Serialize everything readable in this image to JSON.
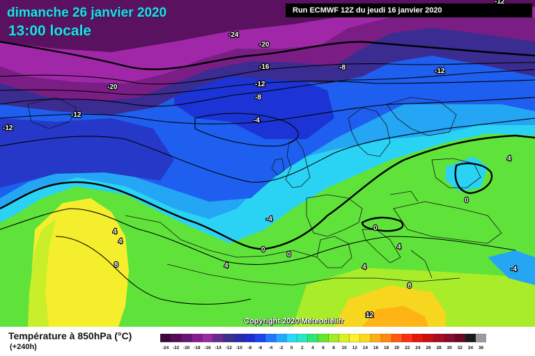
{
  "header": {
    "date": "dimanche 26 janvier 2020",
    "time": "13:00 locale",
    "run": "Run ECMWF 12Z du jeudi 16 janvier 2020"
  },
  "copyright": "Copyright 2020 Meteociel.fr",
  "legend": {
    "title": "Température à 850hPa (°C)",
    "lead": "(+240h)",
    "stops": [
      {
        "value": "-24",
        "color": "#3a0a3a"
      },
      {
        "value": "-22",
        "color": "#550d55"
      },
      {
        "value": "-20",
        "color": "#6a1575"
      },
      {
        "value": "-18",
        "color": "#861d8e"
      },
      {
        "value": "-16",
        "color": "#9a2aa6"
      },
      {
        "value": "-14",
        "color": "#6a2a8a"
      },
      {
        "value": "-12",
        "color": "#3e2f8f"
      },
      {
        "value": "-10",
        "color": "#2a2aa8"
      },
      {
        "value": "-8",
        "color": "#1c2ed0"
      },
      {
        "value": "-6",
        "color": "#1a45f0"
      },
      {
        "value": "-4",
        "color": "#1f78ff"
      },
      {
        "value": "-2",
        "color": "#23a8ff"
      },
      {
        "value": "0",
        "color": "#2bd8ff"
      },
      {
        "value": "2",
        "color": "#27e7c4"
      },
      {
        "value": "4",
        "color": "#2fe874"
      },
      {
        "value": "6",
        "color": "#62e82c"
      },
      {
        "value": "8",
        "color": "#a2ec26"
      },
      {
        "value": "10",
        "color": "#d9f021"
      },
      {
        "value": "12",
        "color": "#fff22a"
      },
      {
        "value": "14",
        "color": "#ffd81a"
      },
      {
        "value": "16",
        "color": "#ffae14"
      },
      {
        "value": "18",
        "color": "#ff8a12"
      },
      {
        "value": "20",
        "color": "#ff5a10"
      },
      {
        "value": "22",
        "color": "#ff2e10"
      },
      {
        "value": "24",
        "color": "#e8140e"
      },
      {
        "value": "26",
        "color": "#c80f0e"
      },
      {
        "value": "28",
        "color": "#a80c1e"
      },
      {
        "value": "30",
        "color": "#8a0a2a"
      },
      {
        "value": "32",
        "color": "#6a0822"
      },
      {
        "value": "34",
        "color": "#1a1a1a"
      },
      {
        "value": "36",
        "color": "#9a9aa4"
      }
    ]
  },
  "contour_labels": [
    "-24",
    "-20",
    "-16",
    "-12",
    "-8",
    "-20",
    "-12",
    "-12",
    "-12",
    "-8",
    "-4",
    "-12",
    "-4",
    "0",
    "0",
    "0",
    "0",
    "4",
    "4",
    "4",
    "8",
    "4",
    "4",
    "8",
    "12",
    "-4",
    "4"
  ]
}
